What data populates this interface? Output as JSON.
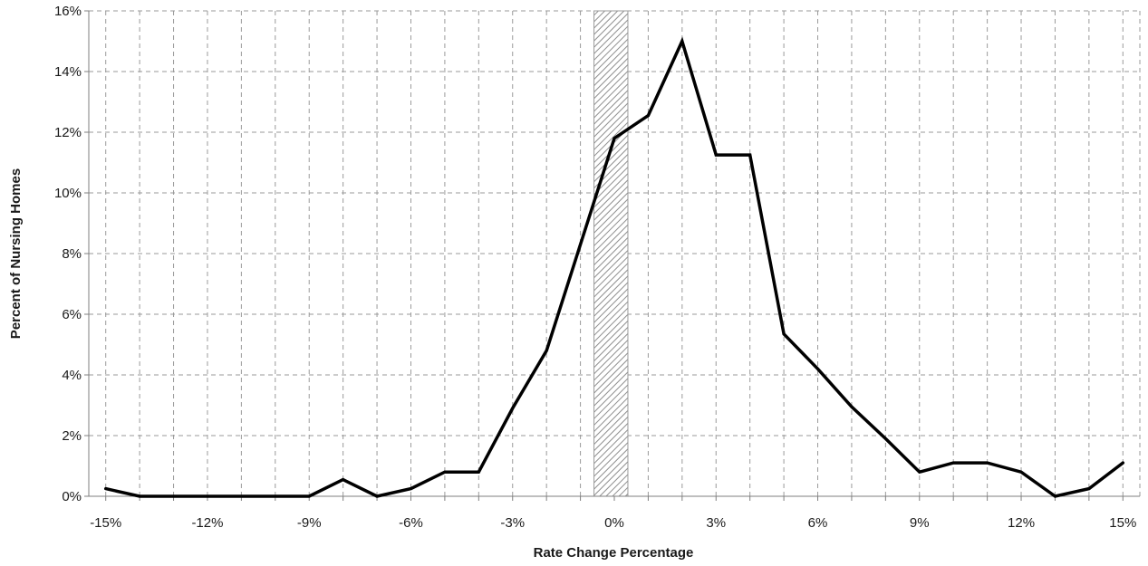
{
  "chart_data": {
    "type": "line",
    "title": "",
    "xlabel": "Rate Change Percentage",
    "ylabel": "Percent of Nursing Homes",
    "xlim": [
      -15.5,
      15.5
    ],
    "ylim": [
      0,
      16
    ],
    "x_ticks": [
      -15,
      -12,
      -9,
      -6,
      -3,
      0,
      3,
      6,
      9,
      12,
      15
    ],
    "x_tick_labels": [
      "-15%",
      "-12%",
      "-9%",
      "-6%",
      "-3%",
      "0%",
      "3%",
      "6%",
      "9%",
      "12%",
      "15%"
    ],
    "y_ticks": [
      0,
      2,
      4,
      6,
      8,
      10,
      12,
      14,
      16
    ],
    "y_tick_labels": [
      "0%",
      "2%",
      "4%",
      "6%",
      "8%",
      "10%",
      "12%",
      "14%",
      "16%"
    ],
    "grid": true,
    "grid_style": "dashed",
    "shaded_band": {
      "x_from": -0.6,
      "x_to": 0.4,
      "fill": "hatched-gray"
    },
    "colors": {
      "line": "#000000",
      "grid": "#9a9a9a",
      "axis": "#7f7f7f",
      "band": "#9c9c9c"
    },
    "series": [
      {
        "x": [
          -15,
          -14,
          -13,
          -12,
          -11,
          -10,
          -9,
          -8,
          -7,
          -6,
          -5,
          -4,
          -3,
          -2,
          -1,
          0,
          1,
          2,
          3,
          4,
          5,
          6,
          7,
          8,
          9,
          10,
          11,
          12,
          13,
          14,
          15
        ],
        "values": [
          0.25,
          0.0,
          0.0,
          0.0,
          0.0,
          0.0,
          0.0,
          0.55,
          0.0,
          0.25,
          0.8,
          0.8,
          2.9,
          4.8,
          8.3,
          11.8,
          12.55,
          15.0,
          11.25,
          11.25,
          5.35,
          4.2,
          2.95,
          1.9,
          0.8,
          1.1,
          1.1,
          0.8,
          0.0,
          0.25,
          1.1
        ]
      }
    ]
  }
}
